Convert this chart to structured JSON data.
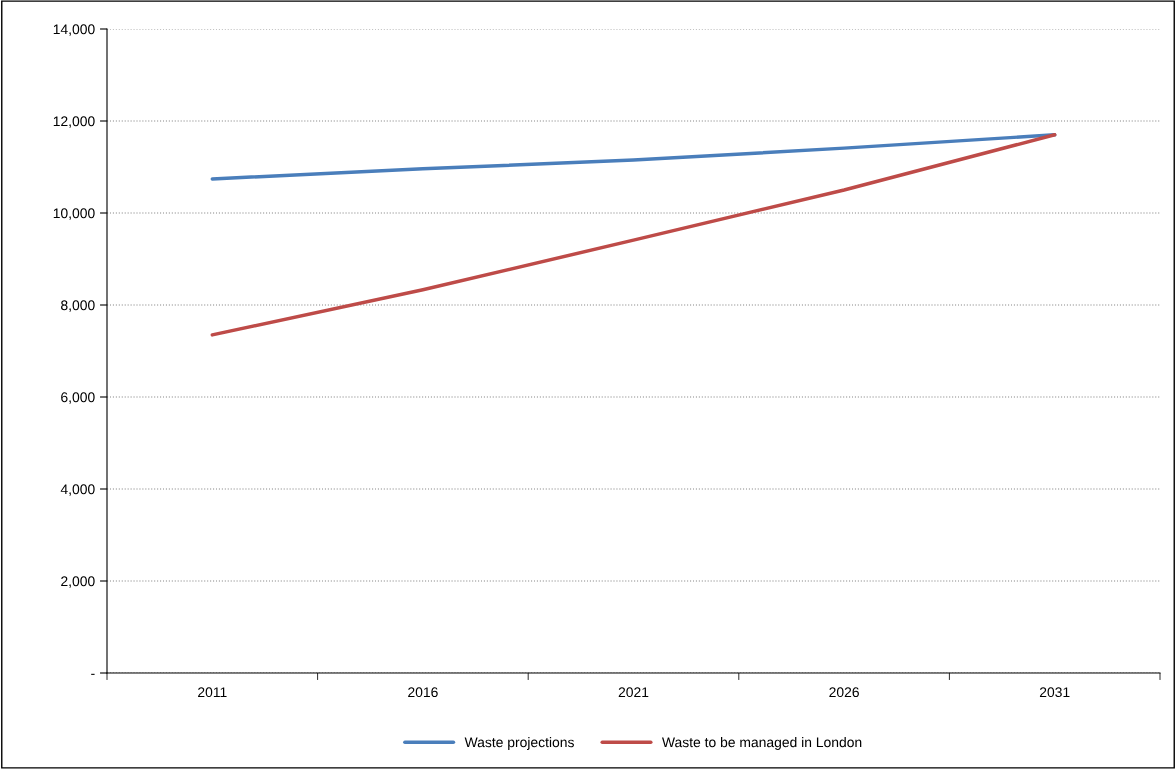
{
  "chart_data": {
    "type": "line",
    "categories": [
      "2011",
      "2016",
      "2021",
      "2026",
      "2031"
    ],
    "series": [
      {
        "name": "Waste projections",
        "color": "#4a7ebb",
        "values": [
          10740,
          10960,
          11150,
          11410,
          11700
        ]
      },
      {
        "name": "Waste to be managed in London",
        "color": "#be4b48",
        "values": [
          7350,
          8330,
          9410,
          10500,
          11700
        ]
      }
    ],
    "ylim": [
      0,
      14000
    ],
    "yticks": [
      {
        "value": 0,
        "label": "-"
      },
      {
        "value": 2000,
        "label": "2,000"
      },
      {
        "value": 4000,
        "label": "4,000"
      },
      {
        "value": 6000,
        "label": "6,000"
      },
      {
        "value": 8000,
        "label": "8,000"
      },
      {
        "value": 10000,
        "label": "10,000"
      },
      {
        "value": 12000,
        "label": "12,000"
      },
      {
        "value": 14000,
        "label": "14,000"
      }
    ],
    "grid": "y",
    "legend": "bottom",
    "marker": "none",
    "line_style": "solid"
  }
}
